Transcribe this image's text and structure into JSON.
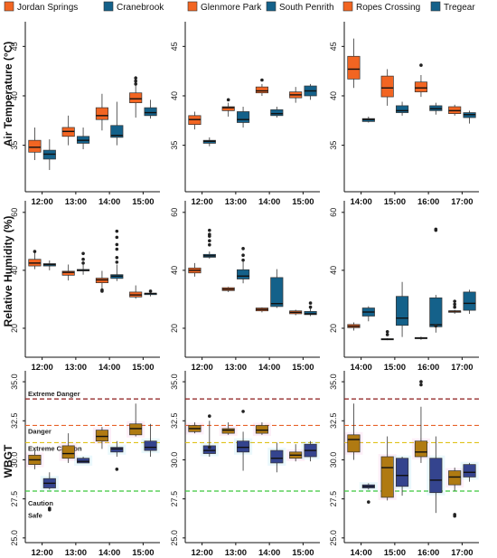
{
  "legends": [
    {
      "series": [
        {
          "name": "Jordan Springs",
          "color": "#F26522"
        },
        {
          "name": "Cranebrook",
          "color": "#14618A"
        }
      ]
    },
    {
      "series": [
        {
          "name": "Glenmore Park",
          "color": "#F26522"
        },
        {
          "name": "South Penrith",
          "color": "#14618A"
        }
      ]
    },
    {
      "series": [
        {
          "name": "Ropes Crossing",
          "color": "#F26522"
        },
        {
          "name": "Tregear",
          "color": "#14618A"
        }
      ]
    }
  ],
  "row_labels": [
    "Air Temperature (°C)",
    "Relative Humidity (%)",
    "WBGT"
  ],
  "wbgt_zones": [
    {
      "label": "Extreme Danger",
      "value": 33.9,
      "color": "#8B1A1A"
    },
    {
      "label": "Danger",
      "value": 32.2,
      "color": "#E8632A"
    },
    {
      "label": "Extreme Caution",
      "value": 31.1,
      "color": "#E0C21A"
    },
    {
      "label": "Caution",
      "value": 28.0,
      "color": "#3CC83C"
    },
    {
      "label": "Safe"
    }
  ],
  "chart_data": [
    {
      "type": "box",
      "row": 0,
      "col": 0,
      "categories": [
        "12:00",
        "13:00",
        "14:00",
        "15:00"
      ],
      "ylim": [
        30.3,
        47.5
      ],
      "yticks": [
        35,
        40,
        45
      ],
      "series": [
        {
          "name": "Jordan Springs",
          "color": "#F26522",
          "boxes": [
            [
              33.5,
              34.3,
              34.8,
              35.5,
              36.8,
              []
            ],
            [
              35.0,
              35.9,
              36.4,
              36.8,
              38.0,
              []
            ],
            [
              36.5,
              37.6,
              38.0,
              38.8,
              40.2,
              []
            ],
            [
              37.8,
              39.3,
              39.7,
              40.3,
              42.0,
              [
                41.2,
                41.5,
                41.8
              ]
            ]
          ]
        },
        {
          "name": "Cranebrook",
          "color": "#14618A",
          "boxes": [
            [
              32.5,
              33.6,
              34.1,
              34.5,
              35.6,
              []
            ],
            [
              34.6,
              35.2,
              35.5,
              35.9,
              36.8,
              []
            ],
            [
              35.0,
              35.8,
              36.0,
              37.0,
              39.4,
              []
            ],
            [
              37.7,
              38.0,
              38.3,
              38.8,
              39.6,
              []
            ]
          ]
        }
      ]
    },
    {
      "type": "box",
      "row": 0,
      "col": 1,
      "categories": [
        "12:00",
        "13:00",
        "14:00",
        "15:00"
      ],
      "ylim": [
        30.3,
        47.5
      ],
      "yticks": [
        35,
        40,
        45
      ],
      "series": [
        {
          "name": "Glenmore Park",
          "color": "#F26522",
          "boxes": [
            [
              36.6,
              37.1,
              37.6,
              38.0,
              38.4,
              []
            ],
            [
              37.9,
              38.5,
              38.8,
              38.9,
              39.3,
              [
                39.6
              ]
            ],
            [
              40.0,
              40.3,
              40.5,
              40.9,
              41.2,
              [
                41.6
              ]
            ],
            [
              39.3,
              39.8,
              40.1,
              40.4,
              40.9,
              []
            ]
          ]
        },
        {
          "name": "South Penrith",
          "color": "#14618A",
          "boxes": [
            [
              34.9,
              35.2,
              35.4,
              35.5,
              35.8,
              []
            ],
            [
              36.8,
              37.3,
              37.6,
              38.4,
              38.9,
              []
            ],
            [
              37.8,
              38.0,
              38.2,
              38.6,
              38.9,
              []
            ],
            [
              39.6,
              40.0,
              40.5,
              41.0,
              41.2,
              []
            ]
          ]
        }
      ]
    },
    {
      "type": "box",
      "row": 0,
      "col": 2,
      "categories": [
        "14:00",
        "15:00",
        "16:00",
        "17:00"
      ],
      "ylim": [
        30.3,
        47.5
      ],
      "yticks": [
        35,
        40,
        45
      ],
      "series": [
        {
          "name": "Ropes Crossing",
          "color": "#F26522",
          "boxes": [
            [
              40.8,
              41.7,
              42.7,
              44.0,
              45.8,
              []
            ],
            [
              39.0,
              39.9,
              40.8,
              42.0,
              42.7,
              []
            ],
            [
              39.9,
              40.4,
              40.8,
              41.4,
              42.1,
              [
                43.1
              ]
            ],
            [
              38.0,
              38.2,
              38.5,
              38.9,
              39.1,
              []
            ]
          ]
        },
        {
          "name": "Tregear",
          "color": "#14618A",
          "boxes": [
            [
              37.3,
              37.4,
              37.6,
              37.7,
              37.9,
              []
            ],
            [
              38.0,
              38.3,
              38.5,
              39.0,
              39.4,
              []
            ],
            [
              38.1,
              38.5,
              38.7,
              39.0,
              39.3,
              []
            ],
            [
              37.2,
              37.8,
              38.1,
              38.3,
              38.5,
              []
            ]
          ]
        }
      ]
    },
    {
      "type": "box",
      "row": 1,
      "col": 0,
      "categories": [
        "12:00",
        "13:00",
        "14:00",
        "15:00"
      ],
      "ylim": [
        10,
        64
      ],
      "yticks": [
        20,
        40,
        60
      ],
      "series": [
        {
          "name": "Jordan Springs",
          "color": "#F26522",
          "boxes": [
            [
              40.4,
              41.5,
              42.5,
              43.8,
              46.0,
              [
                46.5
              ]
            ],
            [
              36.5,
              38.3,
              39.3,
              39.7,
              42.0,
              []
            ],
            [
              33.5,
              35.7,
              36.7,
              37.3,
              39.8,
              [
                32.8,
                33.2
              ]
            ],
            [
              30.2,
              30.8,
              31.5,
              32.5,
              34.8,
              []
            ]
          ]
        },
        {
          "name": "Cranebrook",
          "color": "#14618A",
          "boxes": [
            [
              40.0,
              41.5,
              42.0,
              42.3,
              43.4,
              []
            ],
            [
              38.5,
              39.8,
              40.0,
              40.3,
              42.4,
              [
                42.5,
                43.8,
                45.8
              ]
            ],
            [
              36.3,
              37.2,
              38.0,
              38.5,
              42.0,
              [
                42.8,
                44.4,
                47.3,
                48.9,
                51.4,
                53.5
              ]
            ],
            [
              31.0,
              31.6,
              32.0,
              32.1,
              32.5,
              [
                32.8
              ]
            ]
          ]
        }
      ]
    },
    {
      "type": "box",
      "row": 1,
      "col": 1,
      "categories": [
        "12:00",
        "13:00",
        "14:00",
        "15:00"
      ],
      "ylim": [
        10,
        64
      ],
      "yticks": [
        20,
        40,
        60
      ],
      "series": [
        {
          "name": "Glenmore Park",
          "color": "#F26522",
          "boxes": [
            [
              37.8,
              39.1,
              40.0,
              40.8,
              42.5,
              []
            ],
            [
              32.5,
              33.0,
              33.5,
              34.0,
              34.3,
              []
            ],
            [
              25.5,
              26.0,
              26.5,
              27.0,
              27.2,
              []
            ],
            [
              24.5,
              25.0,
              25.5,
              26.0,
              26.4,
              []
            ]
          ]
        },
        {
          "name": "South Penrith",
          "color": "#14618A",
          "boxes": [
            [
              44.0,
              44.5,
              45.0,
              45.5,
              46.5,
              [
                48.8,
                50.2,
                51.8,
                52.4,
                53.8
              ]
            ],
            [
              35.5,
              37.0,
              38.0,
              40.2,
              43.0,
              [
                43.5,
                45.2,
                47.5
              ]
            ],
            [
              27.0,
              27.5,
              28.5,
              37.5,
              40.4,
              []
            ],
            [
              24.2,
              24.7,
              25.0,
              25.8,
              27.0,
              [
                27.3,
                28.7
              ]
            ]
          ]
        }
      ]
    },
    {
      "type": "box",
      "row": 1,
      "col": 2,
      "categories": [
        "14:00",
        "15:00",
        "16:00",
        "17:00"
      ],
      "ylim": [
        10,
        64
      ],
      "yticks": [
        20,
        40,
        60
      ],
      "series": [
        {
          "name": "Ropes Crossing",
          "color": "#F26522",
          "boxes": [
            [
              19.2,
              20.2,
              20.7,
              21.3,
              22.0,
              []
            ],
            [
              15.9,
              16.0,
              16.2,
              16.4,
              16.6,
              [
                17.8,
                18.8
              ]
            ],
            [
              16.0,
              16.4,
              16.6,
              16.8,
              17.1,
              []
            ],
            [
              25.0,
              25.5,
              25.9,
              26.0,
              26.3,
              [
                27.3,
                28.3,
                29.3
              ]
            ]
          ]
        },
        {
          "name": "Tregear",
          "color": "#14618A",
          "boxes": [
            [
              22.4,
              24.2,
              25.6,
              27.0,
              27.6,
              []
            ],
            [
              17.0,
              21.0,
              23.5,
              31.0,
              36.0,
              []
            ],
            [
              18.5,
              20.5,
              21.2,
              30.5,
              31.5,
              [
                20.8,
                53.8,
                54.2
              ]
            ],
            [
              25.0,
              26.2,
              28.6,
              32.5,
              33.3,
              []
            ]
          ]
        }
      ]
    },
    {
      "type": "box",
      "row": 2,
      "col": 0,
      "categories": [
        "12:00",
        "13:00",
        "14:00",
        "15:00"
      ],
      "ylim": [
        24.7,
        35.7
      ],
      "yticks": [
        25.0,
        27.5,
        30.0,
        32.5,
        35.0
      ],
      "series": [
        {
          "name": "Jordan Springs",
          "color": "#B07A12",
          "boxes": [
            [
              29.4,
              29.7,
              30.0,
              30.3,
              30.6,
              []
            ],
            [
              29.8,
              30.1,
              30.4,
              30.9,
              31.7,
              []
            ],
            [
              30.7,
              31.2,
              31.5,
              31.9,
              32.1,
              []
            ],
            [
              31.5,
              31.6,
              32.0,
              32.3,
              33.6,
              []
            ]
          ]
        },
        {
          "name": "Cranebrook",
          "color": "#34448E",
          "boxes": [
            [
              28.1,
              28.2,
              28.5,
              28.8,
              29.2,
              [
                26.8,
                26.9
              ]
            ],
            [
              29.8,
              29.8,
              29.9,
              30.1,
              30.2,
              []
            ],
            [
              30.2,
              30.5,
              30.7,
              30.8,
              31.2,
              [
                29.4
              ]
            ],
            [
              30.2,
              30.6,
              30.8,
              31.2,
              32.3,
              []
            ]
          ]
        }
      ]
    },
    {
      "type": "box",
      "row": 2,
      "col": 1,
      "categories": [
        "12:00",
        "13:00",
        "14:00",
        "15:00"
      ],
      "ylim": [
        24.7,
        35.7
      ],
      "yticks": [
        25.0,
        27.5,
        30.0,
        32.5,
        35.0
      ],
      "series": [
        {
          "name": "Glenmore Park",
          "color": "#B07A12",
          "boxes": [
            [
              31.7,
              31.8,
              32.0,
              32.2,
              32.4,
              []
            ],
            [
              31.6,
              31.7,
              31.9,
              32.0,
              32.4,
              []
            ],
            [
              31.6,
              31.7,
              31.9,
              32.2,
              32.4,
              []
            ],
            [
              29.9,
              30.1,
              30.3,
              30.5,
              31.0,
              []
            ]
          ]
        },
        {
          "name": "South Penrith",
          "color": "#34448E",
          "boxes": [
            [
              30.2,
              30.4,
              30.6,
              30.9,
              32.5,
              [
                30.8,
                32.8
              ]
            ],
            [
              29.3,
              30.5,
              30.8,
              31.2,
              31.8,
              [
                33.1
              ]
            ],
            [
              29.2,
              29.8,
              30.1,
              30.6,
              31.1,
              []
            ],
            [
              29.9,
              30.2,
              30.6,
              31.0,
              31.2,
              []
            ]
          ]
        }
      ]
    },
    {
      "type": "box",
      "row": 2,
      "col": 2,
      "categories": [
        "14:00",
        "15:00",
        "16:00",
        "17:00"
      ],
      "ylim": [
        24.7,
        35.7
      ],
      "yticks": [
        25.0,
        27.5,
        30.0,
        32.5,
        35.0
      ],
      "series": [
        {
          "name": "Ropes Crossing",
          "color": "#B07A12",
          "boxes": [
            [
              30.0,
              30.5,
              31.3,
              31.6,
              33.6,
              []
            ],
            [
              27.4,
              27.6,
              29.5,
              30.2,
              31.5,
              []
            ],
            [
              29.8,
              30.2,
              30.5,
              31.2,
              33.4,
              [
                34.8,
                35.0
              ]
            ],
            [
              28.0,
              28.4,
              28.9,
              29.3,
              29.5,
              [
                26.4,
                26.5
              ]
            ]
          ]
        },
        {
          "name": "Tregear",
          "color": "#34448E",
          "boxes": [
            [
              28.1,
              28.2,
              28.3,
              28.4,
              28.5,
              [
                27.3
              ]
            ],
            [
              27.7,
              28.3,
              29.0,
              30.1,
              30.2,
              []
            ],
            [
              26.6,
              27.9,
              28.7,
              30.1,
              31.5,
              []
            ],
            [
              28.6,
              28.9,
              29.2,
              29.7,
              29.8,
              []
            ]
          ]
        }
      ]
    }
  ]
}
